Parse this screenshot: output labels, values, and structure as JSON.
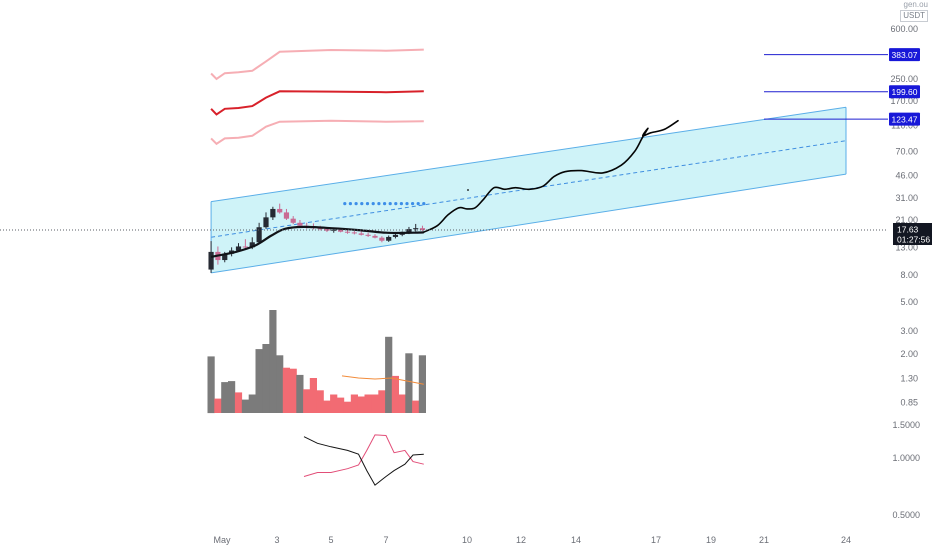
{
  "header": {
    "corner_top": "gen.ou",
    "currency": "USDT"
  },
  "price_badges": [
    {
      "label": "383.07",
      "price": 383.07,
      "bg": "#1818d8"
    },
    {
      "label": "199.60",
      "price": 199.6,
      "bg": "#1818d8"
    },
    {
      "label": "123.47",
      "price": 123.47,
      "bg": "#1818d8"
    }
  ],
  "last_price": {
    "label": "17.63",
    "price": 17.63,
    "countdown": "01:27:56",
    "bg": "#131722"
  },
  "colors": {
    "channel_fill": "#bfeff5",
    "channel_edge": "#5aaee8",
    "channel_mid": "#3f8ee0",
    "dot": "#3d8ee8",
    "band_outer": "#f6aeb4",
    "band_mid": "#d8212a",
    "candle_up": "#262a33",
    "candle_down": "#c96b93",
    "vol_up": "#7b7b7b",
    "vol_down": "#f26b73",
    "ma": "#111318",
    "projection": "#050505",
    "vol_ma": "#f28c3b",
    "osc_a": "#e24e78",
    "osc_b": "#141414",
    "horizontal_line": "#1f1fd0"
  },
  "chart_data": {
    "type": "candlestick",
    "price_axis": {
      "scale": "log",
      "ticks": [
        {
          "label": "600.00",
          "v": 600
        },
        {
          "label": "250.00",
          "v": 250
        },
        {
          "label": "170.00",
          "v": 170
        },
        {
          "label": "110.00",
          "v": 110
        },
        {
          "label": "70.00",
          "v": 70
        },
        {
          "label": "46.00",
          "v": 46
        },
        {
          "label": "31.00",
          "v": 31
        },
        {
          "label": "21.00",
          "v": 21
        },
        {
          "label": "13.00",
          "v": 13
        },
        {
          "label": "8.00",
          "v": 8
        },
        {
          "label": "5.00",
          "v": 5
        },
        {
          "label": "3.00",
          "v": 3
        },
        {
          "label": "2.00",
          "v": 2
        },
        {
          "label": "1.30",
          "v": 1.3
        },
        {
          "label": "0.85",
          "v": 0.85
        }
      ]
    },
    "oscillator_axis": {
      "scale": "log",
      "ticks": [
        {
          "label": "1.5000",
          "v": 1.5
        },
        {
          "label": "1.0000",
          "v": 1.0
        },
        {
          "label": "0.5000",
          "v": 0.5
        }
      ]
    },
    "time_axis": [
      {
        "label": "May",
        "day": 1
      },
      {
        "label": "3",
        "day": 3
      },
      {
        "label": "5",
        "day": 5
      },
      {
        "label": "7",
        "day": 7
      },
      {
        "label": "10",
        "day": 10
      },
      {
        "label": "12",
        "day": 12
      },
      {
        "label": "14",
        "day": 14
      },
      {
        "label": "17",
        "day": 17
      },
      {
        "label": "19",
        "day": 19
      },
      {
        "label": "21",
        "day": 21
      },
      {
        "label": "24",
        "day": 24
      }
    ],
    "candles": [
      {
        "day": 0.6,
        "o": 8.8,
        "h": 14.5,
        "l": 8.3,
        "c": 12.0
      },
      {
        "day": 0.85,
        "o": 12.0,
        "h": 13.2,
        "l": 9.6,
        "c": 10.4
      },
      {
        "day": 1.1,
        "o": 10.4,
        "h": 12.0,
        "l": 10.0,
        "c": 11.6
      },
      {
        "day": 1.35,
        "o": 11.6,
        "h": 13.0,
        "l": 11.1,
        "c": 12.3
      },
      {
        "day": 1.6,
        "o": 12.3,
        "h": 14.0,
        "l": 12.0,
        "c": 13.2
      },
      {
        "day": 1.85,
        "o": 13.2,
        "h": 15.0,
        "l": 12.4,
        "c": 13.0
      },
      {
        "day": 2.1,
        "o": 13.0,
        "h": 15.5,
        "l": 12.6,
        "c": 14.2
      },
      {
        "day": 2.35,
        "o": 14.2,
        "h": 20.0,
        "l": 14.0,
        "c": 18.5
      },
      {
        "day": 2.6,
        "o": 18.5,
        "h": 24.0,
        "l": 18.0,
        "c": 22.0
      },
      {
        "day": 2.85,
        "o": 22.0,
        "h": 26.5,
        "l": 21.0,
        "c": 25.5
      },
      {
        "day": 3.1,
        "o": 25.5,
        "h": 28.0,
        "l": 23.5,
        "c": 24.0
      },
      {
        "day": 3.35,
        "o": 24.0,
        "h": 25.5,
        "l": 21.0,
        "c": 21.5
      },
      {
        "day": 3.6,
        "o": 21.5,
        "h": 22.5,
        "l": 19.5,
        "c": 20.0
      },
      {
        "day": 3.85,
        "o": 20.0,
        "h": 21.0,
        "l": 18.5,
        "c": 19.0
      },
      {
        "day": 4.1,
        "o": 19.0,
        "h": 20.0,
        "l": 18.0,
        "c": 18.8
      },
      {
        "day": 4.35,
        "o": 18.8,
        "h": 19.8,
        "l": 17.8,
        "c": 18.2
      },
      {
        "day": 4.6,
        "o": 18.2,
        "h": 19.0,
        "l": 17.5,
        "c": 18.0
      },
      {
        "day": 4.85,
        "o": 18.0,
        "h": 18.6,
        "l": 17.0,
        "c": 17.4
      },
      {
        "day": 5.1,
        "o": 17.4,
        "h": 18.4,
        "l": 16.8,
        "c": 17.7
      },
      {
        "day": 5.35,
        "o": 17.7,
        "h": 18.2,
        "l": 16.9,
        "c": 17.1
      },
      {
        "day": 5.6,
        "o": 17.1,
        "h": 17.7,
        "l": 16.5,
        "c": 16.9
      },
      {
        "day": 5.85,
        "o": 16.9,
        "h": 17.4,
        "l": 16.3,
        "c": 16.6
      },
      {
        "day": 6.1,
        "o": 16.6,
        "h": 17.2,
        "l": 16.0,
        "c": 16.2
      },
      {
        "day": 6.35,
        "o": 16.2,
        "h": 16.8,
        "l": 15.6,
        "c": 15.9
      },
      {
        "day": 6.6,
        "o": 15.9,
        "h": 16.4,
        "l": 15.2,
        "c": 15.4
      },
      {
        "day": 6.85,
        "o": 15.4,
        "h": 15.8,
        "l": 14.2,
        "c": 14.6
      },
      {
        "day": 7.1,
        "o": 14.6,
        "h": 16.0,
        "l": 14.3,
        "c": 15.6
      },
      {
        "day": 7.35,
        "o": 15.6,
        "h": 16.6,
        "l": 15.2,
        "c": 16.2
      },
      {
        "day": 7.6,
        "o": 16.2,
        "h": 17.2,
        "l": 15.8,
        "c": 16.8
      },
      {
        "day": 7.85,
        "o": 16.8,
        "h": 18.6,
        "l": 16.4,
        "c": 17.9
      },
      {
        "day": 8.1,
        "o": 17.9,
        "h": 19.6,
        "l": 17.2,
        "c": 18.2
      },
      {
        "day": 8.35,
        "o": 18.2,
        "h": 19.0,
        "l": 17.3,
        "c": 17.6
      }
    ],
    "ma_line": [
      {
        "day": 0.6,
        "v": 11.0
      },
      {
        "day": 1.5,
        "v": 12.0
      },
      {
        "day": 2.2,
        "v": 13.4
      },
      {
        "day": 2.8,
        "v": 16.0
      },
      {
        "day": 3.3,
        "v": 18.0
      },
      {
        "day": 4.0,
        "v": 18.6
      },
      {
        "day": 5.0,
        "v": 18.2
      },
      {
        "day": 6.0,
        "v": 17.6
      },
      {
        "day": 7.0,
        "v": 16.8
      },
      {
        "day": 8.0,
        "v": 16.8
      },
      {
        "day": 8.4,
        "v": 16.9
      }
    ],
    "projection_path": [
      {
        "day": 8.4,
        "v": 17.0
      },
      {
        "day": 8.9,
        "v": 19.0
      },
      {
        "day": 9.3,
        "v": 23.0
      },
      {
        "day": 9.7,
        "v": 26.0
      },
      {
        "day": 10.0,
        "v": 25.5
      },
      {
        "day": 10.3,
        "v": 26.0
      },
      {
        "day": 10.6,
        "v": 30.0
      },
      {
        "day": 11.0,
        "v": 37.0
      },
      {
        "day": 11.4,
        "v": 36.0
      },
      {
        "day": 11.8,
        "v": 37.0
      },
      {
        "day": 12.3,
        "v": 36.0
      },
      {
        "day": 12.8,
        "v": 38.0
      },
      {
        "day": 13.2,
        "v": 45.0
      },
      {
        "day": 13.6,
        "v": 49.0
      },
      {
        "day": 14.2,
        "v": 50.0
      },
      {
        "day": 15.0,
        "v": 48.0
      },
      {
        "day": 15.7,
        "v": 55.0
      },
      {
        "day": 16.2,
        "v": 70.0
      },
      {
        "day": 16.5,
        "v": 90.0
      },
      {
        "day": 16.7,
        "v": 105.0
      },
      {
        "day": 16.5,
        "v": 92.0
      },
      {
        "day": 16.8,
        "v": 97.0
      },
      {
        "day": 17.3,
        "v": 103.0
      },
      {
        "day": 17.8,
        "v": 120.0
      }
    ],
    "channel": {
      "start_day": 0.6,
      "end_day": 24.0,
      "upper_start": 29.0,
      "upper_end": 152.0,
      "lower_start": 8.3,
      "lower_end": 47.0
    },
    "bands": {
      "outer_upper": [
        {
          "day": 0.6,
          "v": 275
        },
        {
          "day": 0.8,
          "v": 250
        },
        {
          "day": 1.1,
          "v": 276
        },
        {
          "day": 1.6,
          "v": 281
        },
        {
          "day": 2.1,
          "v": 288
        },
        {
          "day": 2.6,
          "v": 340
        },
        {
          "day": 3.1,
          "v": 402
        },
        {
          "day": 5.0,
          "v": 415
        },
        {
          "day": 7.0,
          "v": 410
        },
        {
          "day": 8.4,
          "v": 418
        }
      ],
      "middle": [
        {
          "day": 0.6,
          "v": 148
        },
        {
          "day": 0.8,
          "v": 134
        },
        {
          "day": 1.1,
          "v": 148
        },
        {
          "day": 1.6,
          "v": 150
        },
        {
          "day": 2.1,
          "v": 155
        },
        {
          "day": 2.6,
          "v": 180
        },
        {
          "day": 3.1,
          "v": 201
        },
        {
          "day": 5.0,
          "v": 200
        },
        {
          "day": 7.0,
          "v": 198
        },
        {
          "day": 8.4,
          "v": 201
        }
      ],
      "outer_lower": [
        {
          "day": 0.6,
          "v": 88
        },
        {
          "day": 0.8,
          "v": 80
        },
        {
          "day": 1.1,
          "v": 88
        },
        {
          "day": 1.6,
          "v": 89
        },
        {
          "day": 2.1,
          "v": 92
        },
        {
          "day": 2.6,
          "v": 108
        },
        {
          "day": 3.1,
          "v": 118
        },
        {
          "day": 5.0,
          "v": 120
        },
        {
          "day": 7.0,
          "v": 118
        },
        {
          "day": 8.4,
          "v": 119
        }
      ]
    },
    "dotted_level": {
      "start_day": 5.5,
      "end_day": 8.4,
      "v": 28.0,
      "count": 15
    },
    "horizontal_lines": [
      {
        "start_day": 21.0,
        "v": 383.07
      },
      {
        "start_day": 21.0,
        "v": 199.6
      },
      {
        "start_day": 21.0,
        "v": 123.47
      }
    ],
    "volume_scale": {
      "max": 1.0
    },
    "volume": [
      {
        "day": 0.6,
        "v": 0.55,
        "dir": "up"
      },
      {
        "day": 0.85,
        "v": 0.14,
        "dir": "down"
      },
      {
        "day": 1.1,
        "v": 0.3,
        "dir": "up"
      },
      {
        "day": 1.35,
        "v": 0.31,
        "dir": "up"
      },
      {
        "day": 1.6,
        "v": 0.2,
        "dir": "down"
      },
      {
        "day": 1.85,
        "v": 0.13,
        "dir": "up"
      },
      {
        "day": 2.1,
        "v": 0.18,
        "dir": "up"
      },
      {
        "day": 2.35,
        "v": 0.62,
        "dir": "up"
      },
      {
        "day": 2.6,
        "v": 0.67,
        "dir": "up"
      },
      {
        "day": 2.85,
        "v": 1.0,
        "dir": "up"
      },
      {
        "day": 3.1,
        "v": 0.56,
        "dir": "up"
      },
      {
        "day": 3.35,
        "v": 0.44,
        "dir": "down"
      },
      {
        "day": 3.6,
        "v": 0.43,
        "dir": "down"
      },
      {
        "day": 3.85,
        "v": 0.37,
        "dir": "up"
      },
      {
        "day": 4.1,
        "v": 0.23,
        "dir": "down"
      },
      {
        "day": 4.35,
        "v": 0.34,
        "dir": "down"
      },
      {
        "day": 4.6,
        "v": 0.22,
        "dir": "down"
      },
      {
        "day": 4.85,
        "v": 0.12,
        "dir": "down"
      },
      {
        "day": 5.1,
        "v": 0.18,
        "dir": "down"
      },
      {
        "day": 5.35,
        "v": 0.15,
        "dir": "down"
      },
      {
        "day": 5.6,
        "v": 0.11,
        "dir": "down"
      },
      {
        "day": 5.85,
        "v": 0.18,
        "dir": "down"
      },
      {
        "day": 6.1,
        "v": 0.16,
        "dir": "down"
      },
      {
        "day": 6.35,
        "v": 0.18,
        "dir": "down"
      },
      {
        "day": 6.6,
        "v": 0.18,
        "dir": "down"
      },
      {
        "day": 6.85,
        "v": 0.22,
        "dir": "down"
      },
      {
        "day": 7.1,
        "v": 0.74,
        "dir": "up"
      },
      {
        "day": 7.35,
        "v": 0.36,
        "dir": "down"
      },
      {
        "day": 7.6,
        "v": 0.18,
        "dir": "down"
      },
      {
        "day": 7.85,
        "v": 0.58,
        "dir": "up"
      },
      {
        "day": 8.1,
        "v": 0.12,
        "dir": "down"
      },
      {
        "day": 8.35,
        "v": 0.56,
        "dir": "up"
      }
    ],
    "volume_ma": [
      {
        "day": 5.4,
        "v": 0.36
      },
      {
        "day": 6.0,
        "v": 0.34
      },
      {
        "day": 6.6,
        "v": 0.33
      },
      {
        "day": 7.2,
        "v": 0.34
      },
      {
        "day": 7.8,
        "v": 0.31
      },
      {
        "day": 8.4,
        "v": 0.28
      }
    ],
    "oscillator_a": [
      {
        "day": 4.0,
        "v": 0.8
      },
      {
        "day": 4.5,
        "v": 0.84
      },
      {
        "day": 5.0,
        "v": 0.84
      },
      {
        "day": 5.6,
        "v": 0.88
      },
      {
        "day": 6.0,
        "v": 0.92
      },
      {
        "day": 6.3,
        "v": 1.1
      },
      {
        "day": 6.6,
        "v": 1.33
      },
      {
        "day": 7.0,
        "v": 1.32
      },
      {
        "day": 7.3,
        "v": 1.07
      },
      {
        "day": 7.7,
        "v": 1.1
      },
      {
        "day": 8.0,
        "v": 0.96
      },
      {
        "day": 8.4,
        "v": 0.93
      }
    ],
    "oscillator_b": [
      {
        "day": 4.0,
        "v": 1.3
      },
      {
        "day": 4.5,
        "v": 1.2
      },
      {
        "day": 5.0,
        "v": 1.15
      },
      {
        "day": 5.6,
        "v": 1.1
      },
      {
        "day": 6.0,
        "v": 1.05
      },
      {
        "day": 6.3,
        "v": 0.86
      },
      {
        "day": 6.6,
        "v": 0.72
      },
      {
        "day": 7.0,
        "v": 0.8
      },
      {
        "day": 7.3,
        "v": 0.86
      },
      {
        "day": 7.7,
        "v": 0.93
      },
      {
        "day": 8.0,
        "v": 1.04
      },
      {
        "day": 8.4,
        "v": 1.05
      }
    ]
  }
}
